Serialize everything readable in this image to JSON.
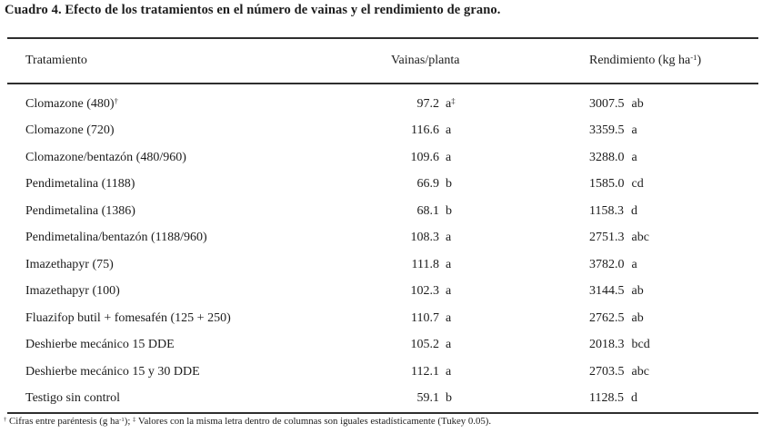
{
  "title": "Cuadro 4. Efecto de los tratamientos en el número de vainas y el rendimiento de grano.",
  "table": {
    "headers": {
      "treatment": "Tratamiento",
      "vainas": "Vainas/planta",
      "rend_prefix": "Rendimiento (kg ha",
      "rend_sup": "-1",
      "rend_suffix": ")"
    },
    "rows": [
      {
        "treatment": "Clomazone (480)",
        "treatment_sup": "†",
        "vainas": "97.2",
        "vainas_letters": "a",
        "vainas_sup": "‡",
        "rend": "3007.5",
        "rend_letters": "ab"
      },
      {
        "treatment": "Clomazone (720)",
        "treatment_sup": "",
        "vainas": "116.6",
        "vainas_letters": "a",
        "vainas_sup": "",
        "rend": "3359.5",
        "rend_letters": "a"
      },
      {
        "treatment": "Clomazone/bentazón (480/960)",
        "treatment_sup": "",
        "vainas": "109.6",
        "vainas_letters": "a",
        "vainas_sup": "",
        "rend": "3288.0",
        "rend_letters": "a"
      },
      {
        "treatment": "Pendimetalina (1188)",
        "treatment_sup": "",
        "vainas": "66.9",
        "vainas_letters": "b",
        "vainas_sup": "",
        "rend": "1585.0",
        "rend_letters": "cd"
      },
      {
        "treatment": "Pendimetalina (1386)",
        "treatment_sup": "",
        "vainas": "68.1",
        "vainas_letters": "b",
        "vainas_sup": "",
        "rend": "1158.3",
        "rend_letters": "d"
      },
      {
        "treatment": "Pendimetalina/bentazón (1188/960)",
        "treatment_sup": "",
        "vainas": "108.3",
        "vainas_letters": "a",
        "vainas_sup": "",
        "rend": "2751.3",
        "rend_letters": "abc"
      },
      {
        "treatment": "Imazethapyr (75)",
        "treatment_sup": "",
        "vainas": "111.8",
        "vainas_letters": "a",
        "vainas_sup": "",
        "rend": "3782.0",
        "rend_letters": "a"
      },
      {
        "treatment": "Imazethapyr (100)",
        "treatment_sup": "",
        "vainas": "102.3",
        "vainas_letters": "a",
        "vainas_sup": "",
        "rend": "3144.5",
        "rend_letters": "ab"
      },
      {
        "treatment": "Fluazifop butil + fomesafén (125 + 250)",
        "treatment_sup": "",
        "vainas": "110.7",
        "vainas_letters": "a",
        "vainas_sup": "",
        "rend": "2762.5",
        "rend_letters": "ab"
      },
      {
        "treatment": "Deshierbe mecánico 15 DDE",
        "treatment_sup": "",
        "vainas": "105.2",
        "vainas_letters": "a",
        "vainas_sup": "",
        "rend": "2018.3",
        "rend_letters": "bcd"
      },
      {
        "treatment": "Deshierbe mecánico 15 y 30 DDE",
        "treatment_sup": "",
        "vainas": "112.1",
        "vainas_letters": "a",
        "vainas_sup": "",
        "rend": "2703.5",
        "rend_letters": "abc"
      },
      {
        "treatment": "Testigo sin control",
        "treatment_sup": "",
        "vainas": "59.1",
        "vainas_letters": "b",
        "vainas_sup": "",
        "rend": "1128.5",
        "rend_letters": "d"
      }
    ]
  },
  "footnote": {
    "sup1": "†",
    "part1": " Cifras entre paréntesis (g ha",
    "sup2": "-1",
    "part2": "); ",
    "sup3": "‡",
    "part3": " Valores con la misma letra dentro de columnas son iguales estadísticamente (Tukey 0.05)."
  },
  "colors": {
    "text": "#1c1c1c",
    "rule": "#2e2e2e",
    "background": "#ffffff"
  }
}
